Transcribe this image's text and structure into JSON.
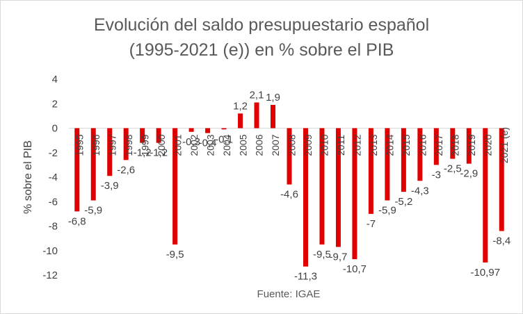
{
  "chart_data": {
    "type": "bar",
    "title_line1": "Evolución del saldo presupuestario español",
    "title_line2": "(1995-2021 (e)) en % sobre el PIB",
    "ylabel": "% sobre el PIB",
    "xlabel": "",
    "source": "Fuente: IGAE",
    "ylim": [
      -12,
      4
    ],
    "yticks": [
      4,
      2,
      0,
      -2,
      -4,
      -6,
      -8,
      -10,
      -12
    ],
    "grid": false,
    "bar_color": "#e00000",
    "categories": [
      "1995",
      "1996",
      "1997",
      "1998",
      "1999",
      "2000",
      "2001",
      "2002",
      "2003",
      "2004",
      "2005",
      "2006",
      "2007",
      "2008",
      "2009",
      "2010",
      "2011",
      "2012",
      "2013",
      "2014",
      "2015",
      "2016",
      "2017",
      "2018",
      "2019",
      "2020",
      "2021 (e)"
    ],
    "values": [
      -6.8,
      -5.9,
      -3.9,
      -2.6,
      -1.2,
      -1.2,
      -9.5,
      -0.3,
      -0.4,
      -0.1,
      1.2,
      2.1,
      1.9,
      -4.6,
      -11.3,
      -9.5,
      -9.7,
      -10.7,
      -7,
      -5.9,
      -5.2,
      -4.3,
      -3,
      -2.5,
      -2.9,
      -10.97,
      -8.4
    ],
    "labels": [
      "-6,8",
      "-5,9",
      "-3,9",
      "-2,6",
      "-1,2",
      "-1,2",
      "-9,5",
      "-0,3",
      "-0,4",
      "-0,1",
      "1,2",
      "2,1",
      "1,9",
      "-4,6",
      "-11,3",
      "-9,5",
      "-9,7",
      "-10,7",
      "-7",
      "-5,9",
      "-5,2",
      "-4,3",
      "-3",
      "-2,5",
      "-2,9",
      "-10,97",
      "-8,4"
    ]
  }
}
